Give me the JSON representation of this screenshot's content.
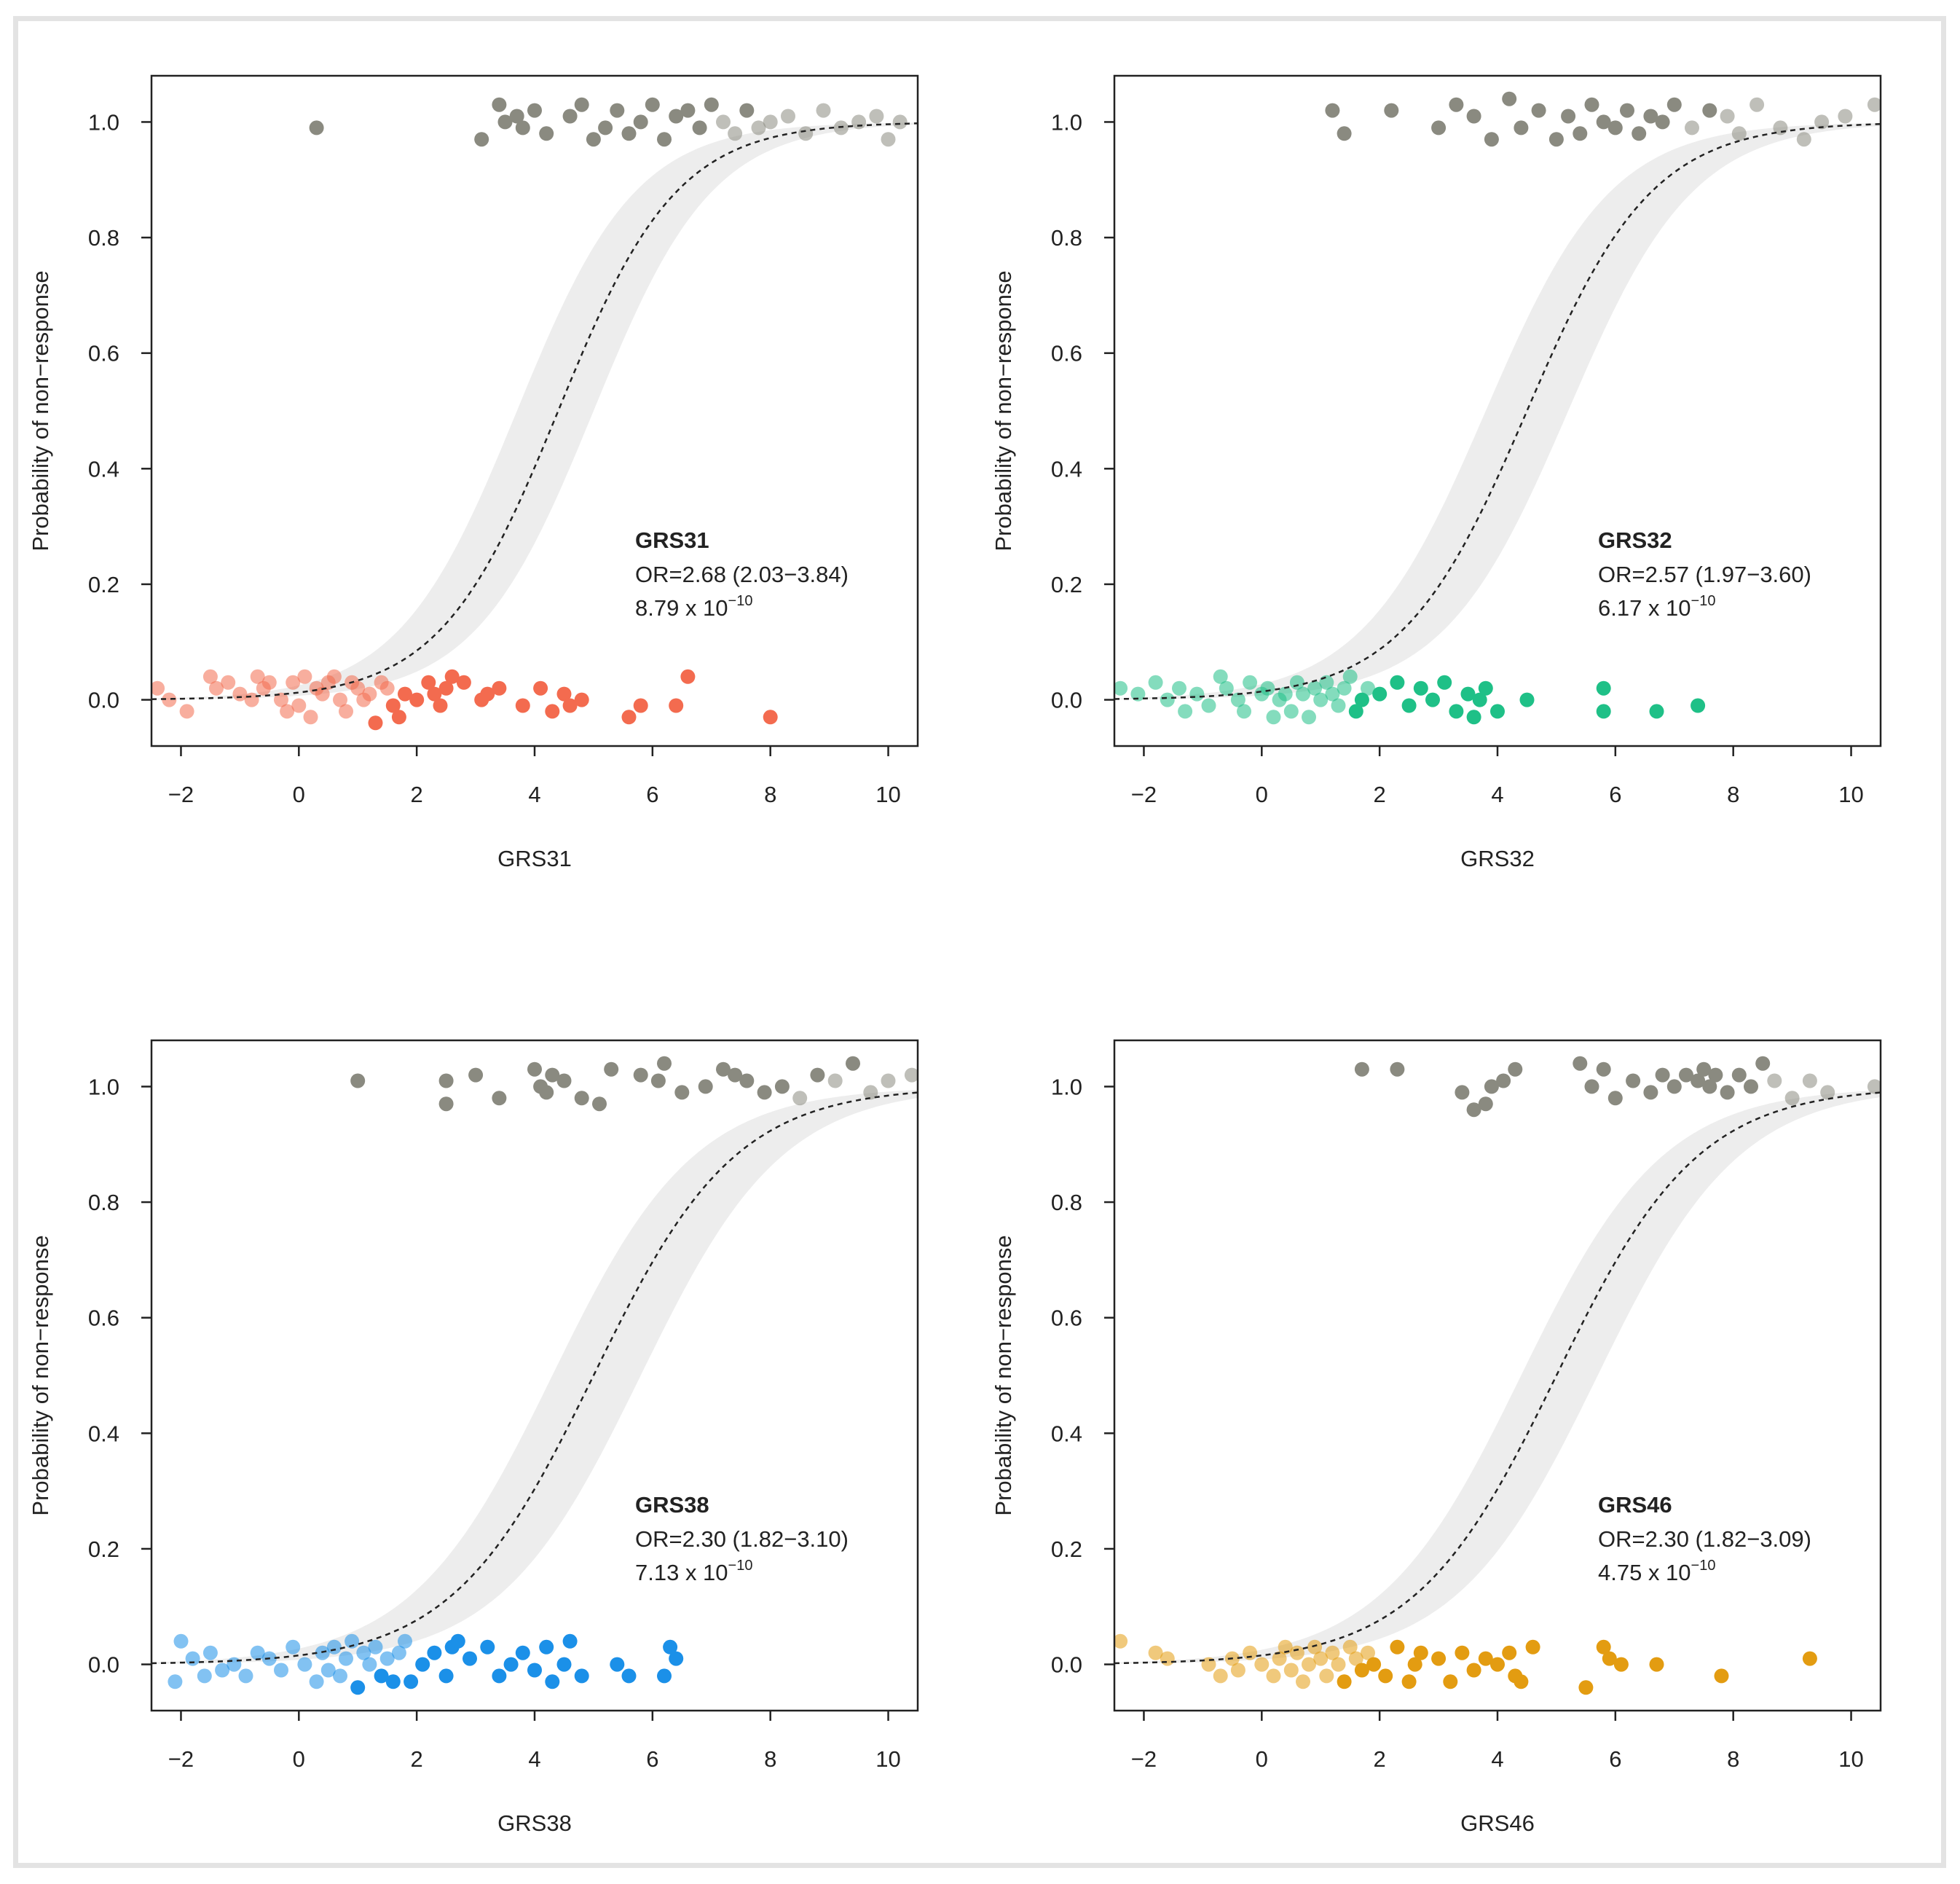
{
  "figure": {
    "ylabel_common": "Probability of non−response"
  },
  "chart_data": [
    {
      "type": "scatter",
      "name": "GRS31",
      "xlabel": "GRS31",
      "ylabel": "Probability of non−response",
      "xlim": [
        -2.5,
        10.5
      ],
      "ylim": [
        -0.08,
        1.08
      ],
      "xticks": [
        -2,
        0,
        2,
        4,
        6,
        8,
        10
      ],
      "xtick_labels": [
        "−2",
        "0",
        "2",
        "4",
        "6",
        "8",
        "10"
      ],
      "yticks": [
        0.0,
        0.2,
        0.4,
        0.6,
        0.8,
        1.0
      ],
      "ytick_labels": [
        "0.0",
        "0.2",
        "0.4",
        "0.6",
        "0.8",
        "1.0"
      ],
      "curve": {
        "type": "logistic",
        "midpoint": 4.4,
        "slope": 0.99,
        "ci_lo_midpoint": 3.7,
        "ci_hi_midpoint": 5.0
      },
      "annotation": {
        "title": "GRS31",
        "or_text": "OR=2.68 (2.03−3.84)",
        "p_mantissa": "8.79 x 10",
        "p_exponent": "−10"
      },
      "colors": {
        "responder": "#f36b4f",
        "nonresponder": "#8a8a80",
        "band": "#ededed",
        "curve": "#222222"
      },
      "series": [
        {
          "name": "responders",
          "x": [
            -2.4,
            -2.2,
            -1.9,
            -1.5,
            -1.4,
            -1.2,
            -1.0,
            -0.8,
            -0.7,
            -0.6,
            -0.5,
            -0.3,
            -0.2,
            -0.1,
            0.0,
            0.1,
            0.2,
            0.3,
            0.4,
            0.5,
            0.6,
            0.7,
            0.8,
            0.9,
            1.0,
            1.1,
            1.2,
            1.3,
            1.4,
            1.5,
            1.6,
            1.7,
            1.8,
            2.0,
            2.2,
            2.3,
            2.4,
            2.5,
            2.6,
            2.8,
            3.1,
            3.2,
            3.4,
            3.8,
            4.1,
            4.3,
            4.5,
            4.6,
            4.8,
            5.6,
            5.8,
            6.4,
            6.6,
            8.0
          ],
          "y": [
            0.02,
            0.0,
            -0.02,
            0.04,
            0.02,
            0.03,
            0.01,
            0.0,
            0.04,
            0.02,
            0.03,
            0.0,
            -0.02,
            0.03,
            -0.01,
            0.04,
            -0.03,
            0.02,
            0.01,
            0.03,
            0.04,
            0.0,
            -0.02,
            0.03,
            0.02,
            0.0,
            0.01,
            -0.04,
            0.03,
            0.02,
            -0.01,
            -0.03,
            0.01,
            0.0,
            0.03,
            0.01,
            -0.01,
            0.02,
            0.04,
            0.03,
            0.0,
            0.01,
            0.02,
            -0.01,
            0.02,
            -0.02,
            0.01,
            -0.01,
            0.0,
            -0.03,
            -0.01,
            -0.01,
            0.04,
            -0.03
          ]
        },
        {
          "name": "non-responders",
          "x": [
            0.3,
            3.1,
            3.4,
            3.5,
            3.7,
            3.8,
            4.0,
            4.2,
            4.6,
            4.8,
            5.0,
            5.2,
            5.4,
            5.6,
            5.8,
            6.0,
            6.2,
            6.4,
            6.6,
            6.8,
            7.0,
            7.2,
            7.4,
            7.6,
            7.8,
            8.0,
            8.3,
            8.6,
            8.9,
            9.2,
            9.5,
            9.8,
            10.0,
            10.2
          ],
          "y": [
            0.99,
            0.97,
            1.03,
            1.0,
            1.01,
            0.99,
            1.02,
            0.98,
            1.01,
            1.03,
            0.97,
            0.99,
            1.02,
            0.98,
            1.0,
            1.03,
            0.97,
            1.01,
            1.02,
            0.99,
            1.03,
            1.0,
            0.98,
            1.02,
            0.99,
            1.0,
            1.01,
            0.98,
            1.02,
            0.99,
            1.0,
            1.01,
            0.97,
            1.0
          ]
        }
      ]
    },
    {
      "type": "scatter",
      "name": "GRS32",
      "xlabel": "GRS32",
      "ylabel": "Probability of non−response",
      "xlim": [
        -2.5,
        10.5
      ],
      "ylim": [
        -0.08,
        1.08
      ],
      "xticks": [
        -2,
        0,
        2,
        4,
        6,
        8,
        10
      ],
      "xtick_labels": [
        "−2",
        "0",
        "2",
        "4",
        "6",
        "8",
        "10"
      ],
      "yticks": [
        0.0,
        0.2,
        0.4,
        0.6,
        0.8,
        1.0
      ],
      "ytick_labels": [
        "0.0",
        "0.2",
        "0.4",
        "0.6",
        "0.8",
        "1.0"
      ],
      "curve": {
        "type": "logistic",
        "midpoint": 4.5,
        "slope": 0.94,
        "ci_lo_midpoint": 3.8,
        "ci_hi_midpoint": 5.2
      },
      "annotation": {
        "title": "GRS32",
        "or_text": "OR=2.57 (1.97−3.60)",
        "p_mantissa": "6.17 x 10",
        "p_exponent": "−10"
      },
      "colors": {
        "responder": "#1fc087",
        "nonresponder": "#8a8a80",
        "band": "#ededed",
        "curve": "#222222"
      },
      "series": [
        {
          "name": "responders",
          "x": [
            -2.4,
            -2.1,
            -1.8,
            -1.6,
            -1.4,
            -1.3,
            -1.1,
            -0.9,
            -0.7,
            -0.6,
            -0.4,
            -0.3,
            -0.2,
            0.0,
            0.1,
            0.2,
            0.3,
            0.4,
            0.5,
            0.6,
            0.7,
            0.8,
            0.9,
            1.0,
            1.1,
            1.2,
            1.3,
            1.4,
            1.5,
            1.6,
            1.7,
            1.8,
            2.0,
            2.3,
            2.5,
            2.7,
            2.9,
            3.1,
            3.3,
            3.5,
            3.6,
            3.7,
            3.8,
            4.0,
            4.5,
            5.8,
            5.8,
            6.7,
            7.4
          ],
          "y": [
            0.02,
            0.01,
            0.03,
            0.0,
            0.02,
            -0.02,
            0.01,
            -0.01,
            0.04,
            0.02,
            0.0,
            -0.02,
            0.03,
            0.01,
            0.02,
            -0.03,
            0.0,
            0.01,
            -0.02,
            0.03,
            0.01,
            -0.03,
            0.02,
            0.0,
            0.03,
            0.01,
            -0.01,
            0.02,
            0.04,
            -0.02,
            0.0,
            0.02,
            0.01,
            0.03,
            -0.01,
            0.02,
            0.0,
            0.03,
            -0.02,
            0.01,
            -0.03,
            0.0,
            0.02,
            -0.02,
            0.0,
            0.02,
            -0.02,
            -0.02,
            -0.01
          ]
        },
        {
          "name": "non-responders",
          "x": [
            1.2,
            1.4,
            2.2,
            3.0,
            3.3,
            3.6,
            3.9,
            4.2,
            4.4,
            4.7,
            5.0,
            5.2,
            5.4,
            5.6,
            5.8,
            6.0,
            6.2,
            6.4,
            6.6,
            6.8,
            7.0,
            7.3,
            7.6,
            7.9,
            8.1,
            8.4,
            8.8,
            9.2,
            9.5,
            9.9,
            10.4
          ],
          "y": [
            1.02,
            0.98,
            1.02,
            0.99,
            1.03,
            1.01,
            0.97,
            1.04,
            0.99,
            1.02,
            0.97,
            1.01,
            0.98,
            1.03,
            1.0,
            0.99,
            1.02,
            0.98,
            1.01,
            1.0,
            1.03,
            0.99,
            1.02,
            1.01,
            0.98,
            1.03,
            0.99,
            0.97,
            1.0,
            1.01,
            1.03
          ]
        }
      ]
    },
    {
      "type": "scatter",
      "name": "GRS38",
      "xlabel": "GRS38",
      "ylabel": "Probability of non−response",
      "xlim": [
        -2.5,
        10.5
      ],
      "ylim": [
        -0.08,
        1.08
      ],
      "xticks": [
        -2,
        0,
        2,
        4,
        6,
        8,
        10
      ],
      "xtick_labels": [
        "−2",
        "0",
        "2",
        "4",
        "6",
        "8",
        "10"
      ],
      "yticks": [
        0.0,
        0.2,
        0.4,
        0.6,
        0.8,
        1.0
      ],
      "ytick_labels": [
        "0.0",
        "0.2",
        "0.4",
        "0.6",
        "0.8",
        "1.0"
      ],
      "curve": {
        "type": "logistic",
        "midpoint": 5.0,
        "slope": 0.83,
        "ci_lo_midpoint": 4.3,
        "ci_hi_midpoint": 5.8
      },
      "annotation": {
        "title": "GRS38",
        "or_text": "OR=2.30 (1.82−3.10)",
        "p_mantissa": "7.13 x 10",
        "p_exponent": "−10"
      },
      "colors": {
        "responder": "#1b90e8",
        "nonresponder": "#8a8a80",
        "band": "#ededed",
        "curve": "#222222"
      },
      "series": [
        {
          "name": "responders",
          "x": [
            -2.1,
            -2.0,
            -1.8,
            -1.6,
            -1.5,
            -1.3,
            -1.1,
            -0.9,
            -0.7,
            -0.5,
            -0.3,
            -0.1,
            0.1,
            0.3,
            0.4,
            0.5,
            0.6,
            0.7,
            0.8,
            0.9,
            1.0,
            1.1,
            1.2,
            1.3,
            1.4,
            1.5,
            1.6,
            1.7,
            1.8,
            1.9,
            2.1,
            2.3,
            2.5,
            2.6,
            2.7,
            2.9,
            3.2,
            3.4,
            3.6,
            3.8,
            4.0,
            4.2,
            4.3,
            4.5,
            4.6,
            4.8,
            5.4,
            5.6,
            6.2,
            6.3,
            6.4
          ],
          "y": [
            -0.03,
            0.04,
            0.01,
            -0.02,
            0.02,
            -0.01,
            0.0,
            -0.02,
            0.02,
            0.01,
            -0.01,
            0.03,
            0.0,
            -0.03,
            0.02,
            -0.01,
            0.03,
            -0.02,
            0.01,
            0.04,
            -0.04,
            0.02,
            0.0,
            0.03,
            -0.02,
            0.01,
            -0.03,
            0.02,
            0.04,
            -0.03,
            0.0,
            0.02,
            -0.02,
            0.03,
            0.04,
            0.01,
            0.03,
            -0.02,
            0.0,
            0.02,
            -0.01,
            0.03,
            -0.03,
            0.0,
            0.04,
            -0.02,
            0.0,
            -0.02,
            -0.02,
            0.03,
            0.01
          ]
        },
        {
          "name": "non-responders",
          "x": [
            1.0,
            2.5,
            2.5,
            3.0,
            3.4,
            4.0,
            4.1,
            4.2,
            4.3,
            4.5,
            4.8,
            5.1,
            5.3,
            5.8,
            6.1,
            6.2,
            6.5,
            6.9,
            7.2,
            7.4,
            7.6,
            7.9,
            8.2,
            8.5,
            8.8,
            9.1,
            9.4,
            9.7,
            10.0,
            10.4
          ],
          "y": [
            1.01,
            1.01,
            0.97,
            1.02,
            0.98,
            1.03,
            1.0,
            0.99,
            1.02,
            1.01,
            0.98,
            0.97,
            1.03,
            1.02,
            1.01,
            1.04,
            0.99,
            1.0,
            1.03,
            1.02,
            1.01,
            0.99,
            1.0,
            0.98,
            1.02,
            1.01,
            1.04,
            0.99,
            1.01,
            1.02
          ]
        }
      ]
    },
    {
      "type": "scatter",
      "name": "GRS46",
      "xlabel": "GRS46",
      "ylabel": "Probability of non−response",
      "xlim": [
        -2.5,
        10.5
      ],
      "ylim": [
        -0.08,
        1.08
      ],
      "xticks": [
        -2,
        0,
        2,
        4,
        6,
        8,
        10
      ],
      "xtick_labels": [
        "−2",
        "0",
        "2",
        "4",
        "6",
        "8",
        "10"
      ],
      "yticks": [
        0.0,
        0.2,
        0.4,
        0.6,
        0.8,
        1.0
      ],
      "ytick_labels": [
        "0.0",
        "0.2",
        "0.4",
        "0.6",
        "0.8",
        "1.0"
      ],
      "curve": {
        "type": "logistic",
        "midpoint": 5.0,
        "slope": 0.83,
        "ci_lo_midpoint": 4.4,
        "ci_hi_midpoint": 5.7
      },
      "annotation": {
        "title": "GRS46",
        "or_text": "OR=2.30 (1.82−3.09)",
        "p_mantissa": "4.75 x 10",
        "p_exponent": "−10"
      },
      "colors": {
        "responder": "#e39c11",
        "nonresponder": "#8a8a80",
        "band": "#ededed",
        "curve": "#222222"
      },
      "series": [
        {
          "name": "responders",
          "x": [
            -2.4,
            -1.8,
            -1.6,
            -0.9,
            -0.7,
            -0.5,
            -0.4,
            -0.2,
            0.0,
            0.2,
            0.3,
            0.4,
            0.5,
            0.6,
            0.7,
            0.8,
            0.9,
            1.0,
            1.1,
            1.2,
            1.3,
            1.4,
            1.5,
            1.6,
            1.7,
            1.8,
            1.9,
            2.1,
            2.3,
            2.5,
            2.6,
            2.7,
            3.0,
            3.2,
            3.4,
            3.6,
            3.8,
            4.0,
            4.2,
            4.3,
            4.4,
            4.6,
            5.5,
            5.8,
            5.9,
            6.1,
            6.7,
            7.8,
            9.3
          ],
          "y": [
            0.04,
            0.02,
            0.01,
            0.0,
            -0.02,
            0.01,
            -0.01,
            0.02,
            0.0,
            -0.02,
            0.01,
            0.03,
            -0.01,
            0.02,
            -0.03,
            0.0,
            0.03,
            0.01,
            -0.02,
            0.02,
            0.0,
            -0.03,
            0.03,
            0.01,
            -0.01,
            0.02,
            0.0,
            -0.02,
            0.03,
            -0.03,
            0.0,
            0.02,
            0.01,
            -0.03,
            0.02,
            -0.01,
            0.01,
            0.0,
            0.02,
            -0.02,
            -0.03,
            0.03,
            -0.04,
            0.03,
            0.01,
            0.0,
            0.0,
            -0.02,
            0.01
          ]
        },
        {
          "name": "non-responders",
          "x": [
            1.7,
            2.3,
            3.4,
            3.6,
            3.8,
            3.9,
            4.1,
            4.3,
            5.4,
            5.6,
            5.8,
            6.0,
            6.3,
            6.6,
            6.8,
            7.0,
            7.2,
            7.4,
            7.5,
            7.6,
            7.7,
            7.9,
            8.1,
            8.3,
            8.5,
            8.7,
            9.0,
            9.3,
            9.6,
            10.4
          ],
          "y": [
            1.03,
            1.03,
            0.99,
            0.96,
            0.97,
            1.0,
            1.01,
            1.03,
            1.04,
            1.0,
            1.03,
            0.98,
            1.01,
            0.99,
            1.02,
            1.0,
            1.02,
            1.01,
            1.03,
            1.0,
            1.02,
            0.99,
            1.02,
            1.0,
            1.04,
            1.01,
            0.98,
            1.01,
            0.99,
            1.0
          ]
        }
      ]
    }
  ]
}
